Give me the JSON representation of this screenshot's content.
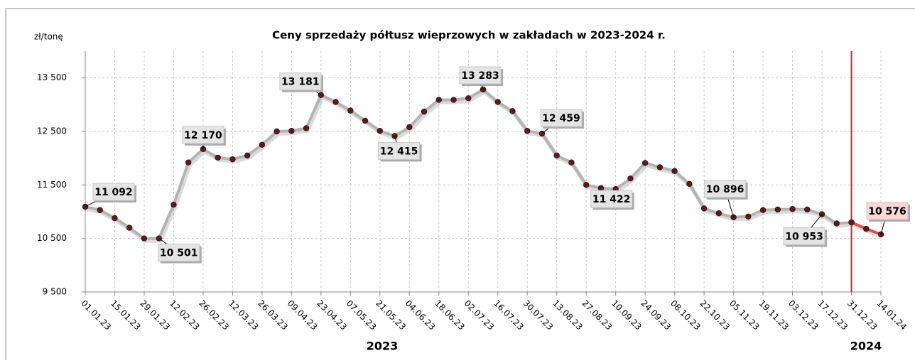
{
  "chart_data": {
    "type": "line",
    "title": "Ceny sprzedaży półtusz wieprzowych w zakładach w 2023-2024 r.",
    "y_label": "zł/tonę",
    "year_labels": [
      "2023",
      "2024"
    ],
    "categories": [
      "01.01.23",
      null,
      "15.01.23",
      null,
      "29.01.23",
      null,
      "12.02.23",
      null,
      "26.02.23",
      null,
      "12.03.23",
      null,
      "26.03.23",
      null,
      "09.04.23",
      null,
      "23.04.23",
      null,
      "07.05.23",
      null,
      "21.05.23",
      null,
      "04.06.23",
      null,
      "18.06.23",
      null,
      "02.07.23",
      null,
      "16.07.23",
      null,
      "30.07.23",
      null,
      "13.08.23",
      null,
      "27.08.23",
      null,
      "10.09.23",
      null,
      "24.09.23",
      null,
      "08.10.23",
      null,
      "22.10.23",
      null,
      "05.11.23",
      null,
      "19.11.23",
      null,
      "03.12.23",
      null,
      "17.12.23",
      null,
      "31.12.23",
      null,
      "14.01.24"
    ],
    "series": [
      {
        "color": "#b4b4b4",
        "values": [
          11092,
          11030,
          10880,
          10700,
          10500,
          10501,
          11130,
          11920,
          12170,
          12010,
          11980,
          12050,
          12250,
          12500,
          12510,
          12560,
          13181,
          13050,
          12890,
          12700,
          12510,
          12415,
          12580,
          12870,
          13090,
          13090,
          13120,
          13283,
          13050,
          12880,
          12510,
          12459,
          12050,
          11920,
          11500,
          11440,
          11422,
          11620,
          11910,
          11830,
          11760,
          11520,
          11060,
          10970,
          10896,
          10910,
          11030,
          11040,
          11050,
          11040,
          10953,
          10780,
          10800,
          null,
          null
        ],
        "value_labels": [
          "11 092",
          null,
          null,
          null,
          null,
          "10 501",
          null,
          null,
          "12 170",
          null,
          null,
          null,
          null,
          null,
          null,
          null,
          "13 181",
          null,
          null,
          null,
          null,
          "12 415",
          null,
          null,
          null,
          null,
          null,
          "13 283",
          null,
          null,
          null,
          "12 459",
          null,
          null,
          null,
          null,
          "11 422",
          null,
          null,
          null,
          null,
          null,
          null,
          null,
          "10 896",
          null,
          null,
          null,
          null,
          null,
          "10 953",
          null,
          null,
          null,
          null
        ]
      },
      {
        "color": "#d9534f",
        "values": [
          null,
          null,
          null,
          null,
          null,
          null,
          null,
          null,
          null,
          null,
          null,
          null,
          null,
          null,
          null,
          null,
          null,
          null,
          null,
          null,
          null,
          null,
          null,
          null,
          null,
          null,
          null,
          null,
          null,
          null,
          null,
          null,
          null,
          null,
          null,
          null,
          null,
          null,
          null,
          null,
          null,
          null,
          null,
          null,
          null,
          null,
          null,
          null,
          null,
          null,
          null,
          null,
          10800,
          10680,
          10576
        ],
        "value_labels": [
          null,
          null,
          null,
          null,
          null,
          null,
          null,
          null,
          null,
          null,
          null,
          null,
          null,
          null,
          null,
          null,
          null,
          null,
          null,
          null,
          null,
          null,
          null,
          null,
          null,
          null,
          null,
          null,
          null,
          null,
          null,
          null,
          null,
          null,
          null,
          null,
          null,
          null,
          null,
          null,
          null,
          null,
          null,
          null,
          null,
          null,
          null,
          null,
          null,
          null,
          null,
          null,
          null,
          null,
          "10 576"
        ]
      }
    ],
    "divider_color": "#e02020",
    "ylim": [
      9500,
      14000
    ],
    "yticks": [
      {
        "value": 9500,
        "label": "9 500"
      },
      {
        "value": 10500,
        "label": "10 500"
      },
      {
        "value": 11500,
        "label": "11 500"
      },
      {
        "value": 12500,
        "label": "12 500"
      },
      {
        "value": 13500,
        "label": "13 500"
      }
    ],
    "grid": true
  }
}
